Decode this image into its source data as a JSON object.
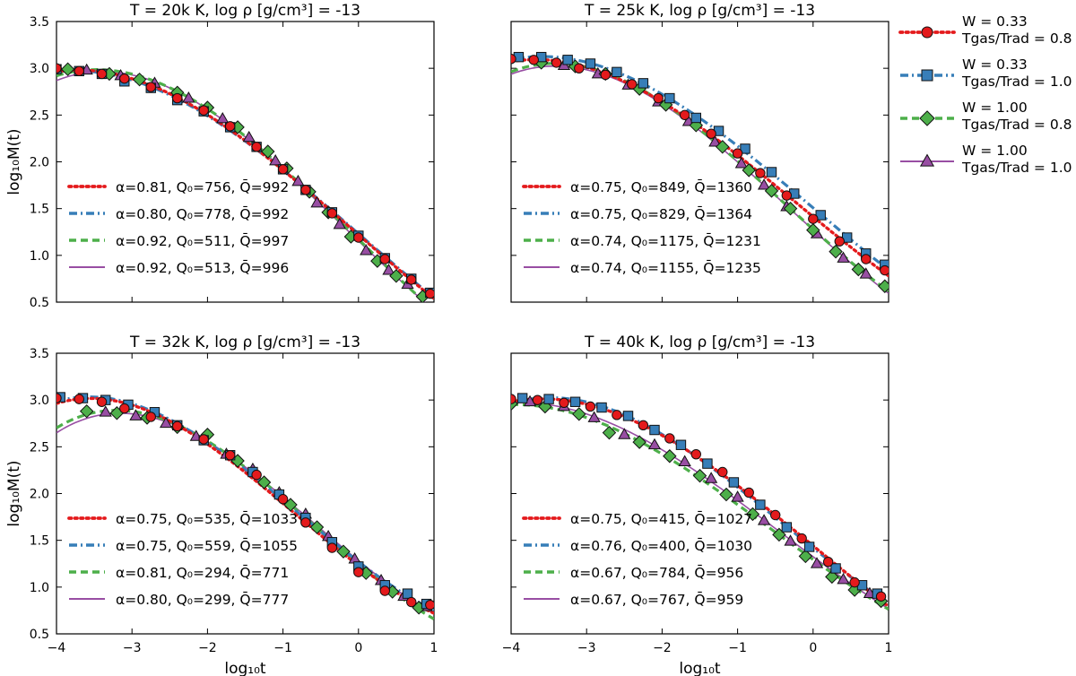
{
  "figure": {
    "shared_legend": [
      {
        "line1": "W = 0.33",
        "line2": "Tgas/Trad = 0.8",
        "color": "#e41a1c",
        "marker": "circle",
        "style": "dotted"
      },
      {
        "line1": "W = 0.33",
        "line2": "Tgas/Trad = 1.0",
        "color": "#377eb8",
        "marker": "square",
        "style": "dashdot"
      },
      {
        "line1": "W = 1.00",
        "line2": "Tgas/Trad = 0.8",
        "color": "#4daf4a",
        "marker": "diamond",
        "style": "dashed"
      },
      {
        "line1": "W = 1.00",
        "line2": "Tgas/Trad = 1.0",
        "color": "#984ea3",
        "marker": "triangle",
        "style": "solid"
      }
    ]
  },
  "chart_data": [
    {
      "type": "line",
      "title": "T = 20k K, log ρ [g/cm³] = -13",
      "xlabel": "log₁₀t",
      "ylabel": "log₁₀M(t)",
      "xlim": [
        -4,
        1
      ],
      "ylim": [
        0.5,
        3.5
      ],
      "xticks": [
        "−4",
        "−3",
        "−2",
        "−1",
        "0",
        "1"
      ],
      "yticks": [
        "0.5",
        "1.0",
        "1.5",
        "2.0",
        "2.5",
        "3.0",
        "3.5"
      ],
      "legend_position": "lower-left",
      "fits": [
        {
          "label": "α=0.81, Q₀=756, Q̄=992",
          "alpha": 0.81,
          "Q0": 756,
          "Qbar": 992
        },
        {
          "label": "α=0.80, Q₀=778, Q̄=992",
          "alpha": 0.8,
          "Q0": 778,
          "Qbar": 992
        },
        {
          "label": "α=0.92, Q₀=511, Q̄=997",
          "alpha": 0.92,
          "Q0": 511,
          "Qbar": 997
        },
        {
          "label": "α=0.92, Q₀=513, Q̄=996",
          "alpha": 0.92,
          "Q0": 513,
          "Qbar": 996
        }
      ],
      "series": [
        {
          "name": "W = 0.33, Tgas/Trad = 0.8",
          "x": [
            -4.0,
            -3.7,
            -3.4,
            -3.1,
            -2.75,
            -2.4,
            -2.05,
            -1.7,
            -1.35,
            -1.0,
            -0.7,
            -0.35,
            0.0,
            0.35,
            0.7,
            0.95
          ],
          "values": [
            3.0,
            2.97,
            2.94,
            2.89,
            2.8,
            2.68,
            2.55,
            2.38,
            2.16,
            1.92,
            1.7,
            1.45,
            1.19,
            0.96,
            0.74,
            0.59
          ]
        },
        {
          "name": "W = 0.33, Tgas/Trad = 1.0",
          "x": [
            -4.0,
            -3.7,
            -3.4,
            -3.1,
            -2.75,
            -2.4,
            -2.05,
            -1.7,
            -1.35,
            -1.0,
            -0.7,
            -0.35,
            0.0,
            0.35,
            0.7,
            0.95
          ],
          "values": [
            2.99,
            2.97,
            2.94,
            2.86,
            2.79,
            2.66,
            2.54,
            2.37,
            2.16,
            1.92,
            1.7,
            1.46,
            1.21,
            0.97,
            0.75,
            0.6
          ]
        },
        {
          "name": "W = 1.00, Tgas/Trad = 0.8",
          "x": [
            -3.85,
            -3.3,
            -2.9,
            -2.4,
            -2.0,
            -1.6,
            -1.2,
            -0.95,
            -0.65,
            -0.4,
            -0.1,
            0.25,
            0.5,
            0.85
          ],
          "values": [
            2.99,
            2.94,
            2.88,
            2.74,
            2.58,
            2.37,
            2.11,
            1.93,
            1.68,
            1.46,
            1.2,
            0.94,
            0.78,
            0.56
          ]
        },
        {
          "name": "W = 1.00, Tgas/Trad = 1.0",
          "x": [
            -3.6,
            -3.15,
            -2.7,
            -2.25,
            -1.8,
            -1.45,
            -1.1,
            -0.8,
            -0.55,
            -0.25,
            0.1,
            0.4,
            0.65
          ],
          "values": [
            2.98,
            2.92,
            2.84,
            2.68,
            2.46,
            2.26,
            2.01,
            1.79,
            1.56,
            1.33,
            1.05,
            0.84,
            0.69
          ]
        }
      ]
    },
    {
      "type": "line",
      "title": "T = 25k K, log ρ [g/cm³] = -13",
      "xlabel": "log₁₀t",
      "ylabel": "log₁₀M(t)",
      "xlim": [
        -4,
        1
      ],
      "ylim": [
        0.5,
        3.5
      ],
      "xticks": [
        "−4",
        "−3",
        "−2",
        "−1",
        "0",
        "1"
      ],
      "yticks": [
        "0.5",
        "1.0",
        "1.5",
        "2.0",
        "2.5",
        "3.0",
        "3.5"
      ],
      "legend_position": "lower-left",
      "fits": [
        {
          "label": "α=0.75, Q₀=849, Q̄=1360",
          "alpha": 0.75,
          "Q0": 849,
          "Qbar": 1360
        },
        {
          "label": "α=0.75, Q₀=829, Q̄=1364",
          "alpha": 0.75,
          "Q0": 829,
          "Qbar": 1364
        },
        {
          "label": "α=0.74, Q₀=1175, Q̄=1231",
          "alpha": 0.74,
          "Q0": 1175,
          "Qbar": 1231
        },
        {
          "label": "α=0.74, Q₀=1155, Q̄=1235",
          "alpha": 0.74,
          "Q0": 1155,
          "Qbar": 1235
        }
      ],
      "series": [
        {
          "name": "W = 0.33, Tgas/Trad = 0.8",
          "x": [
            -4.0,
            -3.7,
            -3.4,
            -3.1,
            -2.75,
            -2.4,
            -2.05,
            -1.7,
            -1.35,
            -1.0,
            -0.7,
            -0.35,
            0.0,
            0.35,
            0.7,
            0.95
          ],
          "values": [
            3.1,
            3.09,
            3.06,
            3.0,
            2.93,
            2.83,
            2.68,
            2.5,
            2.3,
            2.09,
            1.88,
            1.64,
            1.39,
            1.15,
            0.96,
            0.84
          ]
        },
        {
          "name": "W = 0.33, Tgas/Trad = 1.0",
          "x": [
            -3.9,
            -3.6,
            -3.25,
            -2.95,
            -2.6,
            -2.25,
            -1.9,
            -1.55,
            -1.25,
            -0.9,
            -0.55,
            -0.25,
            0.1,
            0.45,
            0.7,
            0.95
          ],
          "values": [
            3.12,
            3.12,
            3.09,
            3.05,
            2.96,
            2.84,
            2.68,
            2.47,
            2.33,
            2.14,
            1.89,
            1.66,
            1.43,
            1.19,
            1.02,
            0.9
          ]
        },
        {
          "name": "W = 1.00, Tgas/Trad = 0.8",
          "x": [
            -3.6,
            -3.15,
            -2.75,
            -2.3,
            -1.95,
            -1.55,
            -1.2,
            -0.85,
            -0.55,
            -0.3,
            0.0,
            0.3,
            0.6,
            0.95
          ],
          "values": [
            3.06,
            3.02,
            2.94,
            2.78,
            2.61,
            2.39,
            2.16,
            1.91,
            1.69,
            1.5,
            1.27,
            1.04,
            0.85,
            0.67
          ]
        },
        {
          "name": "W = 1.00, Tgas/Trad = 1.0",
          "x": [
            -3.3,
            -2.85,
            -2.45,
            -2.05,
            -1.65,
            -1.3,
            -0.95,
            -0.65,
            -0.35,
            0.05,
            0.4,
            0.7
          ],
          "values": [
            3.03,
            2.94,
            2.82,
            2.64,
            2.43,
            2.21,
            1.98,
            1.75,
            1.52,
            1.23,
            0.97,
            0.8
          ]
        }
      ]
    },
    {
      "type": "line",
      "title": "T = 32k K, log ρ [g/cm³] = -13",
      "xlabel": "log₁₀t",
      "ylabel": "log₁₀M(t)",
      "xlim": [
        -4,
        1
      ],
      "ylim": [
        0.5,
        3.5
      ],
      "xticks": [
        "−4",
        "−3",
        "−2",
        "−1",
        "0",
        "1"
      ],
      "yticks": [
        "0.5",
        "1.0",
        "1.5",
        "2.0",
        "2.5",
        "3.0",
        "3.5"
      ],
      "legend_position": "lower-left",
      "fits": [
        {
          "label": "α=0.75, Q₀=535, Q̄=1033",
          "alpha": 0.75,
          "Q0": 535,
          "Qbar": 1033
        },
        {
          "label": "α=0.75, Q₀=559, Q̄=1055",
          "alpha": 0.75,
          "Q0": 559,
          "Qbar": 1055
        },
        {
          "label": "α=0.81, Q₀=294, Q̄=771",
          "alpha": 0.81,
          "Q0": 294,
          "Qbar": 771
        },
        {
          "label": "α=0.80, Q₀=299, Q̄=777",
          "alpha": 0.8,
          "Q0": 299,
          "Qbar": 777
        }
      ],
      "series": [
        {
          "name": "W = 0.33, Tgas/Trad = 0.8",
          "x": [
            -4.0,
            -3.7,
            -3.4,
            -3.1,
            -2.75,
            -2.4,
            -2.05,
            -1.7,
            -1.35,
            -1.0,
            -0.7,
            -0.35,
            0.0,
            0.35,
            0.7,
            0.95
          ],
          "values": [
            3.02,
            3.01,
            2.98,
            2.91,
            2.82,
            2.72,
            2.58,
            2.41,
            2.2,
            1.94,
            1.69,
            1.42,
            1.16,
            0.96,
            0.84,
            0.81
          ]
        },
        {
          "name": "W = 0.33, Tgas/Trad = 1.0",
          "x": [
            -3.95,
            -3.65,
            -3.35,
            -3.05,
            -2.7,
            -2.4,
            -2.05,
            -1.7,
            -1.4,
            -1.05,
            -0.7,
            -0.35,
            0.0,
            0.35,
            0.65,
            0.9
          ],
          "values": [
            3.03,
            3.02,
            3.0,
            2.95,
            2.87,
            2.73,
            2.57,
            2.41,
            2.23,
            1.99,
            1.74,
            1.48,
            1.22,
            1.02,
            0.93,
            0.82
          ]
        },
        {
          "name": "W = 1.00, Tgas/Trad = 0.8",
          "x": [
            -3.6,
            -3.2,
            -2.8,
            -2.4,
            -2.0,
            -1.6,
            -1.25,
            -0.9,
            -0.55,
            -0.2,
            0.1,
            0.45,
            0.8
          ],
          "values": [
            2.88,
            2.86,
            2.81,
            2.71,
            2.63,
            2.35,
            2.12,
            1.88,
            1.64,
            1.38,
            1.15,
            0.95,
            0.78
          ]
        },
        {
          "name": "W = 1.00, Tgas/Trad = 1.0",
          "x": [
            -3.35,
            -2.95,
            -2.55,
            -2.15,
            -1.75,
            -1.4,
            -1.05,
            -0.7,
            -0.4,
            -0.05,
            0.3,
            0.6,
            0.9
          ],
          "values": [
            2.87,
            2.83,
            2.75,
            2.61,
            2.42,
            2.26,
            2.01,
            1.78,
            1.54,
            1.3,
            1.07,
            0.9,
            0.79
          ]
        }
      ]
    },
    {
      "type": "line",
      "title": "T = 40k K, log ρ [g/cm³] = -13",
      "xlabel": "log₁₀t",
      "ylabel": "log₁₀M(t)",
      "xlim": [
        -4,
        1
      ],
      "ylim": [
        0.5,
        3.5
      ],
      "xticks": [
        "−4",
        "−3",
        "−2",
        "−1",
        "0",
        "1"
      ],
      "yticks": [
        "0.5",
        "1.0",
        "1.5",
        "2.0",
        "2.5",
        "3.0",
        "3.5"
      ],
      "legend_position": "lower-left",
      "fits": [
        {
          "label": "α=0.75, Q₀=415, Q̄=1027",
          "alpha": 0.75,
          "Q0": 415,
          "Qbar": 1027
        },
        {
          "label": "α=0.76, Q₀=400, Q̄=1030",
          "alpha": 0.76,
          "Q0": 400,
          "Qbar": 1030
        },
        {
          "label": "α=0.67, Q₀=784, Q̄=956",
          "alpha": 0.67,
          "Q0": 784,
          "Qbar": 956
        },
        {
          "label": "α=0.67, Q₀=767, Q̄=959",
          "alpha": 0.67,
          "Q0": 767,
          "Qbar": 959
        }
      ],
      "series": [
        {
          "name": "W = 0.33, Tgas/Trad = 0.8",
          "x": [
            -4.0,
            -3.65,
            -3.3,
            -2.95,
            -2.6,
            -2.25,
            -1.9,
            -1.55,
            -1.2,
            -0.85,
            -0.5,
            -0.15,
            0.2,
            0.55,
            0.9
          ],
          "values": [
            3.01,
            3.0,
            2.97,
            2.93,
            2.84,
            2.73,
            2.59,
            2.42,
            2.23,
            2.01,
            1.77,
            1.52,
            1.27,
            1.05,
            0.9
          ]
        },
        {
          "name": "W = 0.33, Tgas/Trad = 1.0",
          "x": [
            -3.85,
            -3.5,
            -3.15,
            -2.8,
            -2.45,
            -2.1,
            -1.75,
            -1.4,
            -1.05,
            -0.7,
            -0.35,
            -0.05,
            0.3,
            0.65,
            0.85
          ],
          "values": [
            3.02,
            3.01,
            2.98,
            2.92,
            2.83,
            2.68,
            2.52,
            2.32,
            2.12,
            1.88,
            1.64,
            1.43,
            1.2,
            1.02,
            0.93
          ]
        },
        {
          "name": "W = 1.00, Tgas/Trad = 0.8",
          "x": [
            -4.0,
            -3.55,
            -3.1,
            -2.7,
            -2.3,
            -1.9,
            -1.5,
            -1.15,
            -0.8,
            -0.45,
            -0.1,
            0.25,
            0.55,
            0.9
          ],
          "values": [
            2.96,
            2.93,
            2.85,
            2.65,
            2.55,
            2.4,
            2.19,
            1.99,
            1.78,
            1.56,
            1.33,
            1.11,
            0.97,
            0.85
          ]
        },
        {
          "name": "W = 1.00, Tgas/Trad = 1.0",
          "x": [
            -3.75,
            -3.3,
            -2.9,
            -2.5,
            -2.1,
            -1.7,
            -1.35,
            -1.0,
            -0.65,
            -0.3,
            0.05,
            0.4,
            0.75
          ],
          "values": [
            2.98,
            2.93,
            2.81,
            2.63,
            2.52,
            2.34,
            2.16,
            1.96,
            1.71,
            1.49,
            1.25,
            1.08,
            0.93
          ]
        }
      ]
    }
  ]
}
